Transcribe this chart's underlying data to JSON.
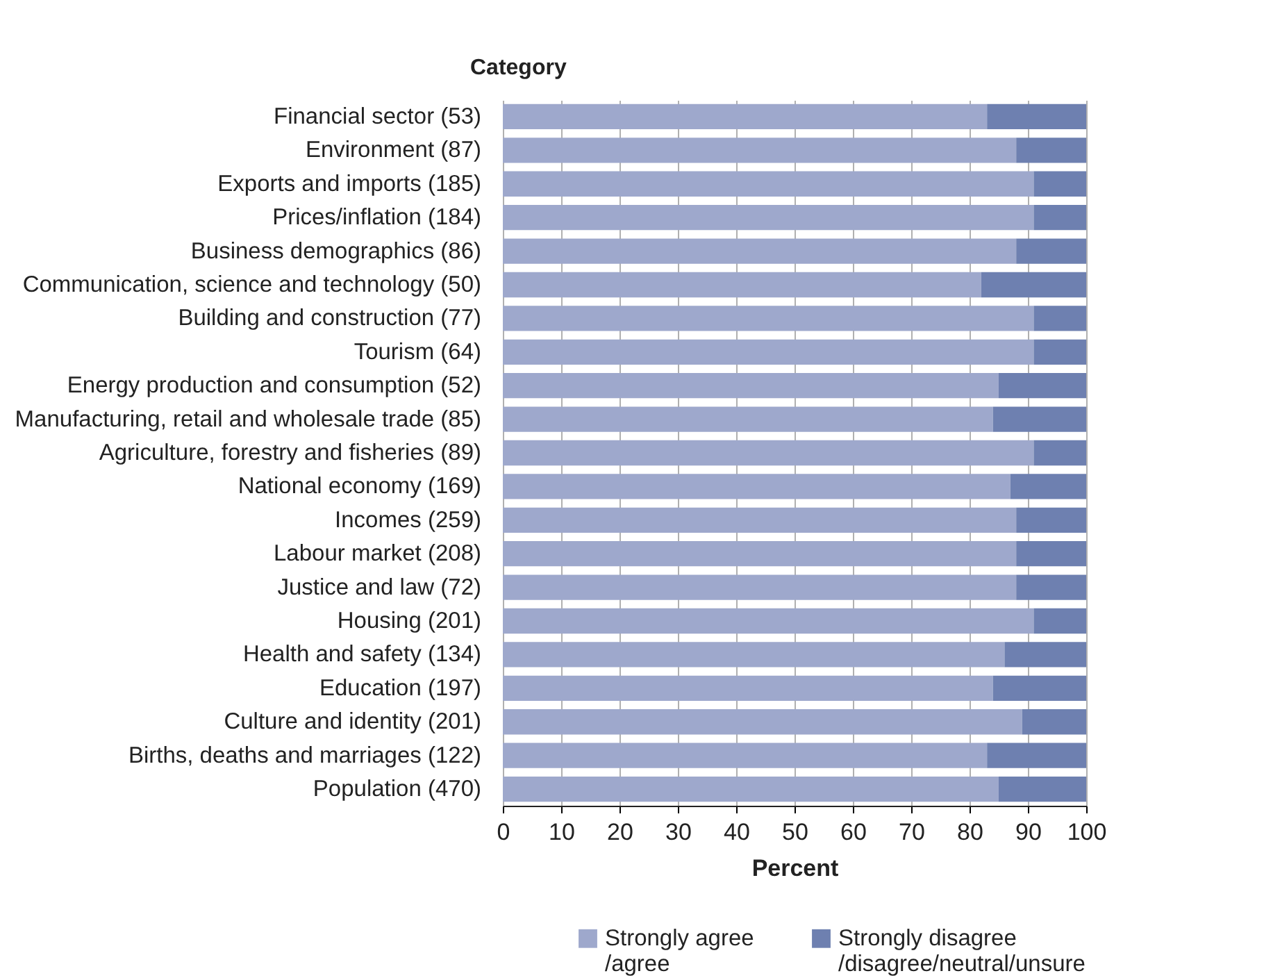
{
  "chart_data": {
    "type": "bar",
    "orientation": "horizontal",
    "stacked": true,
    "ylabel": "Category",
    "xlabel": "Percent",
    "categories": [
      "Financial sector (53)",
      "Environment (87)",
      "Exports and imports (185)",
      "Prices/inflation (184)",
      "Business demographics (86)",
      "Communication, science and technology (50)",
      "Building and construction (77)",
      "Tourism (64)",
      "Energy production and consumption (52)",
      "Manufacturing, retail and wholesale trade (85)",
      "Agriculture, forestry and fisheries (89)",
      "National economy (169)",
      "Incomes (259)",
      "Labour market (208)",
      "Justice and law (72)",
      "Housing (201)",
      "Health and safety (134)",
      "Education (197)",
      "Culture and identity (201)",
      "Births, deaths and marriages (122)",
      "Population (470)"
    ],
    "series": [
      {
        "name": "Strongly agree\n/agree",
        "color": "#9ea8cc",
        "values": [
          83,
          88,
          91,
          91,
          88,
          82,
          91,
          91,
          85,
          84,
          91,
          87,
          88,
          88,
          88,
          91,
          86,
          84,
          89,
          83,
          85
        ]
      },
      {
        "name": "Strongly disagree\n/disagree/neutral/unsure",
        "color": "#6e80b0",
        "values": [
          17,
          12,
          9,
          9,
          12,
          18,
          9,
          9,
          15,
          16,
          9,
          13,
          12,
          12,
          12,
          9,
          14,
          16,
          11,
          17,
          15
        ]
      }
    ],
    "xlim": [
      0,
      100
    ],
    "xticks": [
      0,
      10,
      20,
      30,
      40,
      50,
      60,
      70,
      80,
      90,
      100
    ],
    "grid": "x",
    "legend": "bottom"
  }
}
